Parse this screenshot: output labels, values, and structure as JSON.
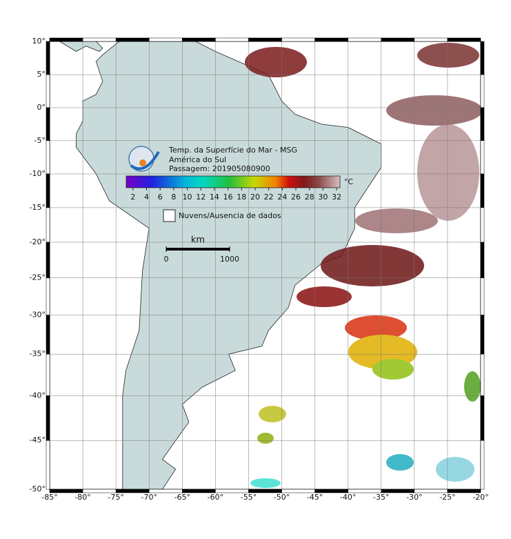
{
  "map": {
    "title": [
      "Temp. da Superfície do Mar - MSG",
      "América do Sul",
      "Passagem: 201905080900"
    ],
    "xlim": [
      -85,
      -20
    ],
    "ylim": [
      -50,
      10
    ],
    "xticks": [
      {
        "value": -85,
        "label": "-85°"
      },
      {
        "value": -80,
        "label": "-80°"
      },
      {
        "value": -75,
        "label": "-75°"
      },
      {
        "value": -70,
        "label": "-70°"
      },
      {
        "value": -65,
        "label": "-65°"
      },
      {
        "value": -60,
        "label": "-60°"
      },
      {
        "value": -55,
        "label": "-55°"
      },
      {
        "value": -50,
        "label": "-50°"
      },
      {
        "value": -45,
        "label": "-45°"
      },
      {
        "value": -40,
        "label": "-40°"
      },
      {
        "value": -35,
        "label": "-35°"
      },
      {
        "value": -30,
        "label": "-30°"
      },
      {
        "value": -25,
        "label": "-25°"
      },
      {
        "value": -20,
        "label": "-20°"
      }
    ],
    "yticks": [
      {
        "value": 10,
        "label": "10°"
      },
      {
        "value": 5,
        "label": "5°"
      },
      {
        "value": 0,
        "label": "0°"
      },
      {
        "value": -5,
        "label": "-5°"
      },
      {
        "value": -10,
        "label": "-10°"
      },
      {
        "value": -15,
        "label": "-15°"
      },
      {
        "value": -20,
        "label": "-20°"
      },
      {
        "value": -25,
        "label": "-25°"
      },
      {
        "value": -30,
        "label": "-30°"
      },
      {
        "value": -35,
        "label": "-35°"
      },
      {
        "value": -40,
        "label": "-40°"
      },
      {
        "value": -45,
        "label": "-45°"
      },
      {
        "value": -50,
        "label": "-50°"
      }
    ],
    "grid": true,
    "colorbar": {
      "lim": [
        1,
        32.5
      ],
      "ticks": [
        2,
        4,
        6,
        8,
        10,
        12,
        14,
        16,
        18,
        20,
        22,
        24,
        26,
        28,
        30,
        32
      ],
      "unit": "°C"
    },
    "legend": "Nuvens/Ausencia de dados",
    "scalebar": {
      "unit": "km",
      "ticks": [
        0,
        1000
      ]
    }
  }
}
